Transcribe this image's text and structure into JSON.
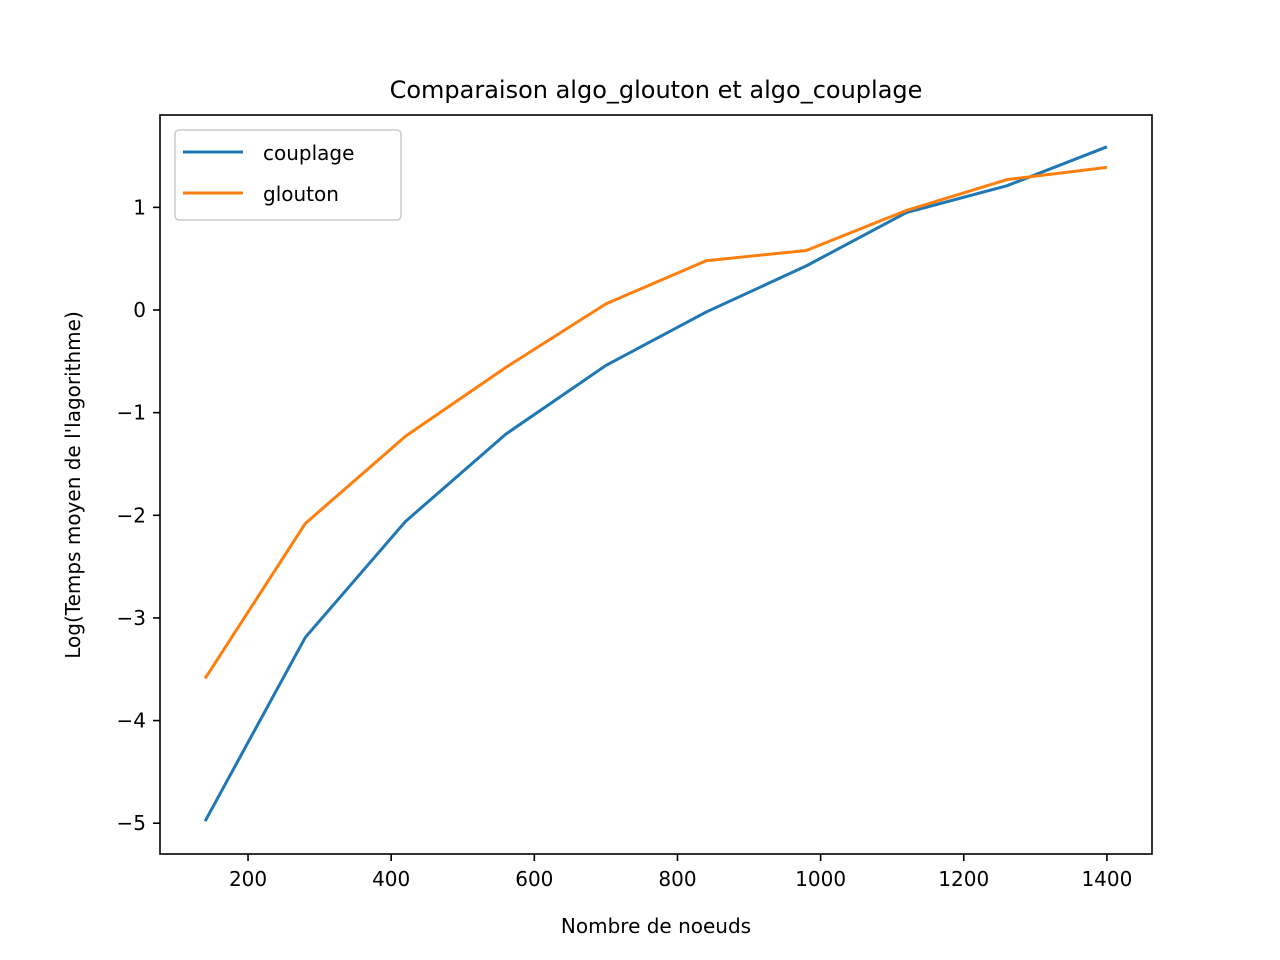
{
  "chart_data": {
    "type": "line",
    "title": "Comparaison algo_glouton et algo_couplage",
    "xlabel": "Nombre de noeuds",
    "ylabel": "Log(Temps moyen de l'lagorithme)",
    "x": [
      140,
      280,
      420,
      560,
      700,
      840,
      980,
      1120,
      1260,
      1400
    ],
    "xlim": [
      77,
      1463
    ],
    "ylim": [
      -5.3,
      1.9
    ],
    "xticks": [
      200,
      400,
      600,
      800,
      1000,
      1200,
      1400
    ],
    "xtick_labels": [
      "200",
      "400",
      "600",
      "800",
      "1000",
      "1200",
      "1400"
    ],
    "yticks": [
      -5,
      -4,
      -3,
      -2,
      -1,
      0,
      1
    ],
    "ytick_labels": [
      "−5",
      "−4",
      "−3",
      "−2",
      "−1",
      "0",
      "1"
    ],
    "grid": false,
    "legend_position": "upper-left",
    "series": [
      {
        "name": "couplage",
        "color": "#1f77b4",
        "values": [
          -4.98,
          -3.19,
          -2.06,
          -1.21,
          -0.54,
          -0.02,
          0.43,
          0.95,
          1.21,
          1.59
        ]
      },
      {
        "name": "glouton",
        "color": "#ff7f0e",
        "values": [
          -3.59,
          -2.08,
          -1.23,
          -0.56,
          0.06,
          0.48,
          0.58,
          0.97,
          1.27,
          1.39
        ]
      }
    ]
  }
}
